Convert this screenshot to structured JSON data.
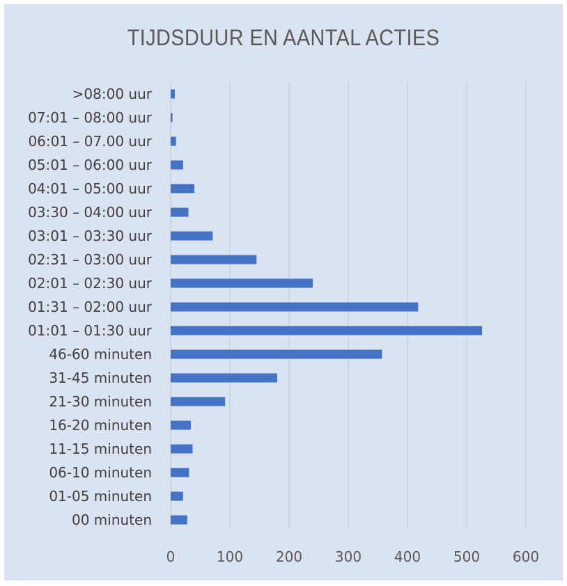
{
  "chart_data": {
    "type": "bar",
    "orientation": "horizontal",
    "title": "TIJDSDUUR EN AANTAL ACTIES",
    "xlabel": "",
    "ylabel": "",
    "xlim": [
      0,
      600
    ],
    "x_ticks": [
      "0",
      "100",
      "200",
      "300",
      "400",
      "500",
      "600"
    ],
    "grid": "vertical",
    "categories": [
      ">08:00 uur",
      "07:01 – 08:00 uur",
      "06:01 – 07.00 uur",
      "05:01 – 06:00 uur",
      "04:01 – 05:00 uur",
      "03:30 – 04:00 uur",
      "03:01 – 03:30 uur",
      "02:31 – 03:00 uur",
      "02:01 – 02:30 uur",
      "01:31 – 02:00 uur",
      "01:01 – 01:30 uur",
      "46-60 minuten",
      "31-45 minuten",
      "21-30 minuten",
      "16-20 minuten",
      "11-15 minuten",
      "06-10 minuten",
      "01-05 minuten",
      "00 minuten"
    ],
    "values": [
      7,
      3,
      9,
      21,
      40,
      30,
      71,
      145,
      240,
      418,
      526,
      357,
      180,
      92,
      34,
      37,
      31,
      21,
      28
    ],
    "bar_color": "#4472c4",
    "background_color": "#dae3f0"
  }
}
